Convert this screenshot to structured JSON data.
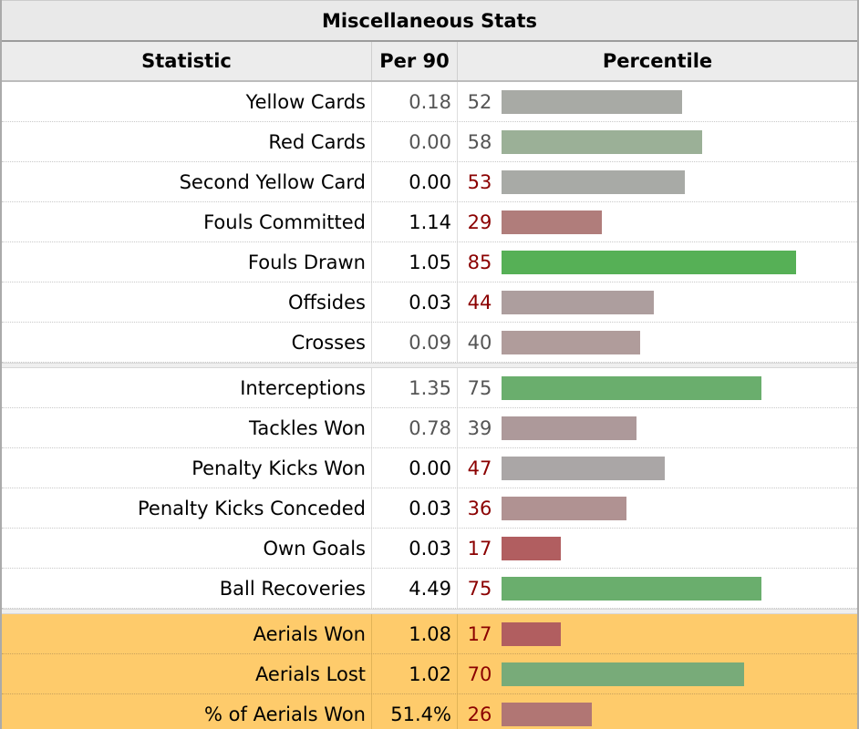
{
  "title": "Miscellaneous Stats",
  "headers": {
    "statistic": "Statistic",
    "per90": "Per 90",
    "percentile": "Percentile"
  },
  "group1": [
    {
      "stat": "Yellow Cards",
      "per90": "0.18",
      "pct": 52,
      "bar_color": "#a8aaa5",
      "pct_color": "grey",
      "p90_color": "grey"
    },
    {
      "stat": "Red Cards",
      "per90": "0.00",
      "pct": 58,
      "bar_color": "#9bb097",
      "pct_color": "grey",
      "p90_color": "grey"
    },
    {
      "stat": "Second Yellow Card",
      "per90": "0.00",
      "pct": 53,
      "bar_color": "#a8aaa6",
      "pct_color": "red",
      "p90_color": "black"
    },
    {
      "stat": "Fouls Committed",
      "per90": "1.14",
      "pct": 29,
      "bar_color": "#b07d7b",
      "pct_color": "red",
      "p90_color": "black"
    },
    {
      "stat": "Fouls Drawn",
      "per90": "1.05",
      "pct": 85,
      "bar_color": "#56b056",
      "pct_color": "red",
      "p90_color": "black"
    },
    {
      "stat": "Offsides",
      "per90": "0.03",
      "pct": 44,
      "bar_color": "#ad9e9e",
      "pct_color": "red",
      "p90_color": "black"
    },
    {
      "stat": "Crosses",
      "per90": "0.09",
      "pct": 40,
      "bar_color": "#b09c9b",
      "pct_color": "grey",
      "p90_color": "grey"
    }
  ],
  "group2": [
    {
      "stat": "Interceptions",
      "per90": "1.35",
      "pct": 75,
      "bar_color": "#6aae6d",
      "pct_color": "grey",
      "p90_color": "grey"
    },
    {
      "stat": "Tackles Won",
      "per90": "0.78",
      "pct": 39,
      "bar_color": "#ad999a",
      "pct_color": "grey",
      "p90_color": "grey"
    },
    {
      "stat": "Penalty Kicks Won",
      "per90": "0.00",
      "pct": 47,
      "bar_color": "#aaa6a6",
      "pct_color": "red",
      "p90_color": "black"
    },
    {
      "stat": "Penalty Kicks Conceded",
      "per90": "0.03",
      "pct": 36,
      "bar_color": "#b09292",
      "pct_color": "red",
      "p90_color": "black"
    },
    {
      "stat": "Own Goals",
      "per90": "0.03",
      "pct": 17,
      "bar_color": "#b15e60",
      "pct_color": "red",
      "p90_color": "black"
    },
    {
      "stat": "Ball Recoveries",
      "per90": "4.49",
      "pct": 75,
      "bar_color": "#6aae6d",
      "pct_color": "red",
      "p90_color": "black"
    }
  ],
  "group3": [
    {
      "stat": "Aerials Won",
      "per90": "1.08",
      "pct": 17,
      "bar_color": "#b15e60",
      "pct_color": "red",
      "p90_color": "black"
    },
    {
      "stat": "Aerials Lost",
      "per90": "1.02",
      "pct": 70,
      "bar_color": "#78ab79",
      "pct_color": "red",
      "p90_color": "black"
    },
    {
      "stat": "% of Aerials Won",
      "per90": "51.4%",
      "pct": 26,
      "bar_color": "#b17674",
      "pct_color": "red",
      "p90_color": "black"
    }
  ]
}
